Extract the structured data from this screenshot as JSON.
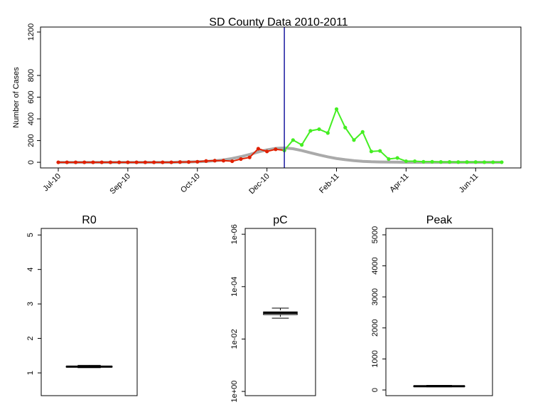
{
  "chart_data": [
    {
      "type": "line",
      "title": "SD County Data 2010-2011",
      "y_label": "Number of Cases",
      "categories": [
        "Jul-10",
        null,
        null,
        null,
        null,
        null,
        null,
        null,
        "Sep-10",
        null,
        null,
        null,
        null,
        null,
        null,
        null,
        "Oct-10",
        null,
        null,
        null,
        null,
        null,
        null,
        null,
        "Dec-10",
        null,
        null,
        null,
        null,
        null,
        null,
        null,
        "Feb-11",
        null,
        null,
        null,
        null,
        null,
        null,
        null,
        "Apr-11",
        null,
        null,
        null,
        null,
        null,
        null,
        null,
        "Jun-11",
        null,
        null,
        null
      ],
      "ylim": [
        -52,
        1246
      ],
      "yticks": [
        0,
        200,
        400,
        600,
        800,
        1200
      ],
      "vline_at": 26,
      "vline_color": "#1a1aa0",
      "series": [
        {
          "color": "#aaaaaa",
          "markers": false,
          "values": [
            0,
            0,
            0,
            0,
            0,
            0,
            0,
            0,
            0,
            0,
            0,
            0,
            0,
            0,
            2,
            3,
            5,
            8,
            14,
            22,
            35,
            52,
            72,
            95,
            115,
            128,
            132,
            125,
            108,
            88,
            68,
            50,
            35,
            24,
            15,
            9,
            5,
            3,
            2,
            1,
            0,
            0,
            0,
            0,
            0,
            0,
            0,
            0,
            0,
            0,
            0,
            0
          ]
        },
        {
          "color": "#e02000",
          "markers": true,
          "values": [
            0,
            0,
            0,
            0,
            0,
            0,
            0,
            0,
            0,
            0,
            0,
            0,
            0,
            0,
            2,
            3,
            5,
            12,
            15,
            15,
            10,
            30,
            45,
            125,
            100,
            120,
            110,
            null,
            null,
            null,
            null,
            null,
            null,
            null,
            null,
            null,
            null,
            null,
            null,
            null,
            null,
            null,
            null,
            null,
            null,
            null,
            null,
            null,
            null,
            null,
            null,
            null
          ]
        },
        {
          "color": "#44ee22",
          "markers": true,
          "values": [
            null,
            null,
            null,
            null,
            null,
            null,
            null,
            null,
            null,
            null,
            null,
            null,
            null,
            null,
            null,
            null,
            null,
            null,
            null,
            null,
            null,
            null,
            null,
            null,
            null,
            null,
            110,
            205,
            160,
            290,
            305,
            270,
            490,
            320,
            205,
            280,
            100,
            105,
            30,
            40,
            10,
            10,
            5,
            5,
            3,
            3,
            2,
            2,
            2,
            1,
            1,
            1
          ]
        }
      ]
    },
    {
      "type": "box",
      "title": "R0",
      "ylim": [
        0.34,
        5.19
      ],
      "yticks": [
        1,
        2,
        3,
        4,
        5
      ],
      "stats": {
        "whisker_low": 1.15,
        "q1": 1.17,
        "median": 1.18,
        "q3": 1.19,
        "whisker_high": 1.22
      }
    },
    {
      "type": "box",
      "title": "pC",
      "log_scale": true,
      "ylim": [
        1.45,
        6e-07
      ],
      "yticks": [
        {
          "value": 1,
          "label": "1e+00"
        },
        {
          "value": 0.01,
          "label": "1e-02"
        },
        {
          "value": 0.0001,
          "label": "1e-04"
        },
        {
          "value": 1e-06,
          "label": "1e-06"
        }
      ],
      "stats": {
        "whisker_low": 0.00066,
        "q1": 0.00092,
        "median": 0.001,
        "q3": 0.00117,
        "whisker_high": 0.0016
      }
    },
    {
      "type": "box",
      "title": "Peak",
      "ylim": [
        -183,
        5206
      ],
      "yticks": [
        0,
        1000,
        2000,
        3000,
        4000,
        5000
      ],
      "stats": {
        "whisker_low": 100,
        "q1": 110,
        "median": 120,
        "q3": 130,
        "whisker_high": 150
      }
    }
  ]
}
